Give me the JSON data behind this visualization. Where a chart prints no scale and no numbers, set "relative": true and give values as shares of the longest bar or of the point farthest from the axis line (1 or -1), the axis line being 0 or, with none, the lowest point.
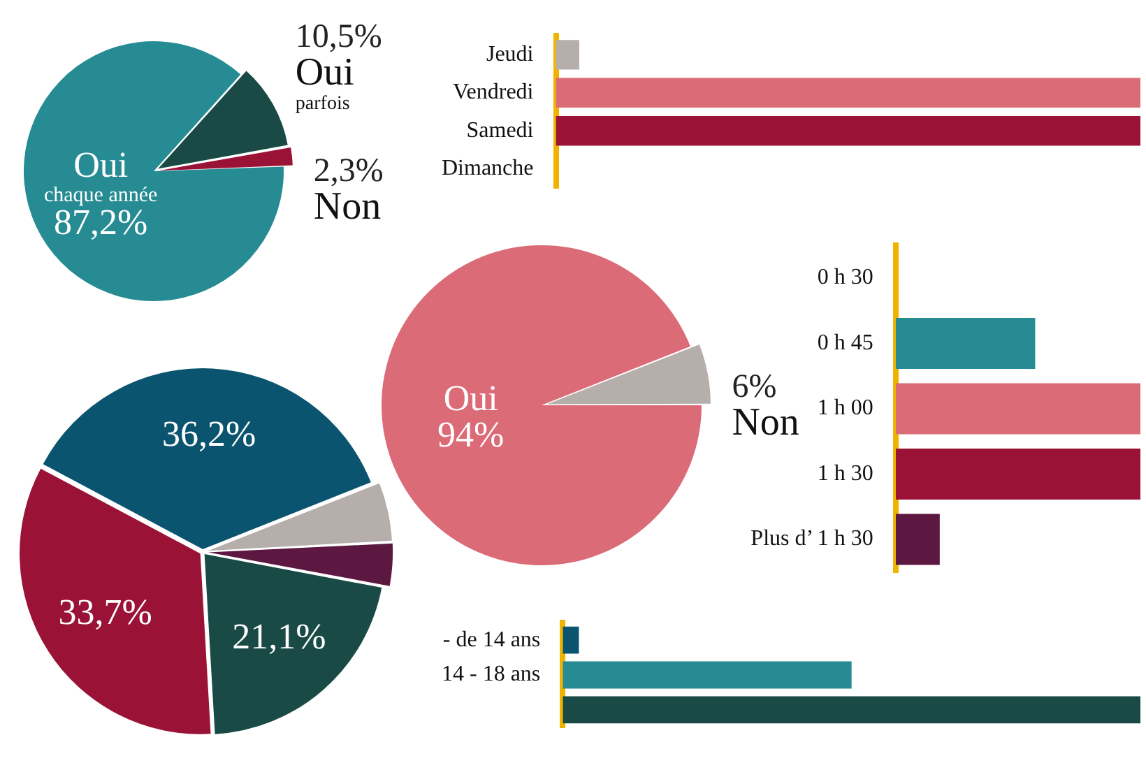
{
  "chart_data": [
    {
      "type": "pie",
      "categories": [
        "Oui chaque année",
        "Oui parfois",
        "Non"
      ],
      "values": [
        87.2,
        10.5,
        2.3
      ],
      "value_labels": [
        "87,2%",
        "10,5%",
        "2,3%"
      ],
      "colors": [
        "#268b93",
        "#1a4a45",
        "#9b1237"
      ]
    },
    {
      "type": "bar",
      "orientation": "horizontal",
      "relative": true,
      "categories": [
        "Jeudi",
        "Vendredi",
        "Samedi",
        "Dimanche"
      ],
      "values": [
        0.04,
        1,
        1,
        0
      ],
      "colors": [
        "#b5aeab",
        "#dc6b78",
        "#9b1237",
        "#5c1841"
      ]
    },
    {
      "type": "pie",
      "categories": [
        null,
        null,
        null,
        null,
        null
      ],
      "values": [
        36.2,
        5.2,
        3.8,
        21.1,
        33.7
      ],
      "value_labels": [
        "36,2%",
        null,
        null,
        "21,1%",
        "33,7%"
      ],
      "colors": [
        "#0b5470",
        "#b5aeab",
        "#5c1841",
        "#1a4a45",
        "#9b1237"
      ]
    },
    {
      "type": "pie",
      "categories": [
        "Oui",
        "Non"
      ],
      "values": [
        94,
        6
      ],
      "value_labels": [
        "94%",
        "6%"
      ],
      "colors": [
        "#dc6b78",
        "#b5aeab"
      ]
    },
    {
      "type": "bar",
      "orientation": "horizontal",
      "relative": true,
      "categories": [
        "0 h 30",
        "0 h 45",
        "1 h 00",
        "1 h 30",
        "Plus d’ 1 h 30"
      ],
      "values": [
        0,
        0.57,
        1,
        1,
        0.18
      ],
      "colors": [
        "#b5aeab",
        "#268b93",
        "#dc6b78",
        "#9b1237",
        "#5c1841"
      ]
    },
    {
      "type": "bar",
      "orientation": "horizontal",
      "relative": true,
      "categories": [
        "- de 14 ans",
        "14 - 18 ans",
        null
      ],
      "values": [
        0.028,
        0.5,
        1
      ],
      "colors": [
        "#0b5470",
        "#268b93",
        "#1a4a45"
      ]
    }
  ]
}
